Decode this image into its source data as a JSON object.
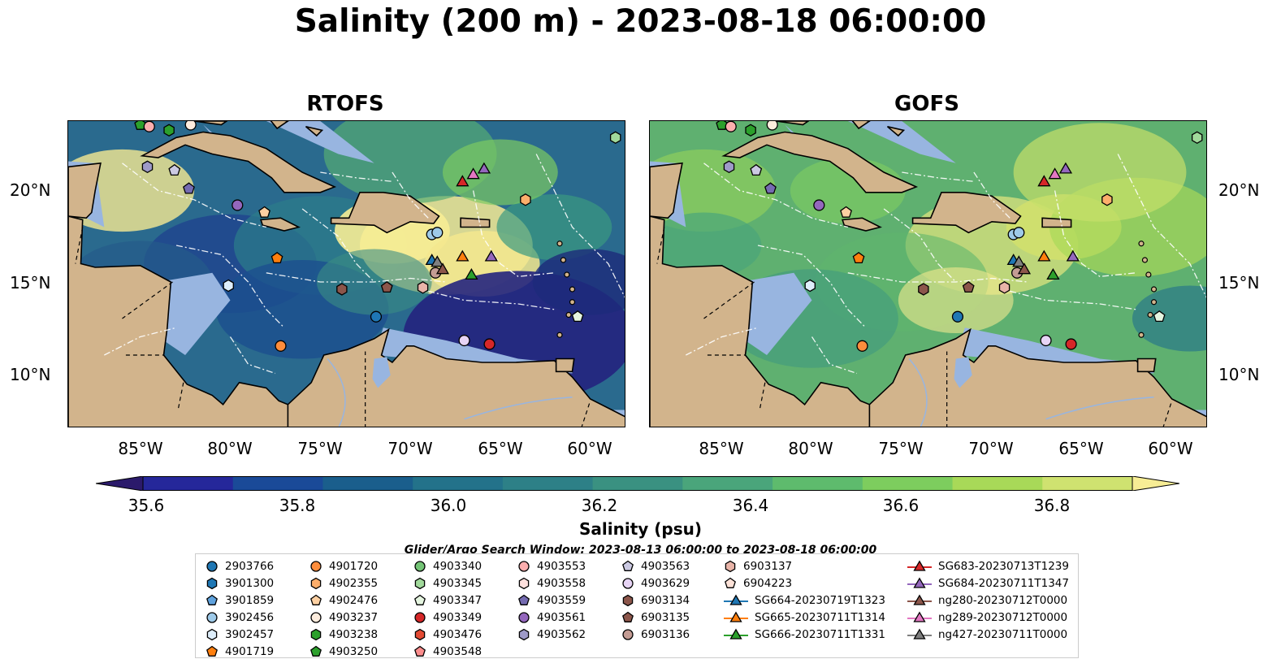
{
  "title": "Salinity (200 m) - 2023-08-18 06:00:00",
  "panels": [
    {
      "name": "RTOFS"
    },
    {
      "name": "GOFS"
    }
  ],
  "map": {
    "lon_range": [
      -89,
      -58
    ],
    "lat_range": [
      7,
      23.8
    ],
    "lat_ticks": [
      "20°N",
      "15°N",
      "10°N"
    ],
    "lon_ticks": [
      "85°W",
      "80°W",
      "75°W",
      "70°W",
      "65°W",
      "60°W"
    ],
    "colors": {
      "land": "#d2b48c",
      "shallow": "#98b5e0",
      "contour": "#ffffff"
    }
  },
  "colorbar": {
    "label": "Salinity (psu)",
    "ticks": [
      "35.6",
      "35.8",
      "36.0",
      "36.2",
      "36.4",
      "36.6",
      "36.8"
    ],
    "colors": [
      "#2b1a6b",
      "#25279a",
      "#1a4a98",
      "#1a5e8c",
      "#23728a",
      "#2d8087",
      "#3a9181",
      "#4aa57b",
      "#5ebb6d",
      "#7dcd5e",
      "#a8d958",
      "#cfe270",
      "#f7ed95"
    ]
  },
  "search_window": "Glider/Argo Search Window: 2023-08-13 06:00:00 to 2023-08-18 06:00:00",
  "legend": {
    "columns": [
      [
        {
          "label": "2903766",
          "marker": "circle",
          "color": "#1f77b4"
        },
        {
          "label": "3901300",
          "marker": "hexagon",
          "color": "#1f77b4"
        },
        {
          "label": "3901859",
          "marker": "pentagon",
          "color": "#5fa2dd"
        },
        {
          "label": "3902456",
          "marker": "circle",
          "color": "#9ecae9"
        },
        {
          "label": "3902457",
          "marker": "hexagon",
          "color": "#deeefb"
        },
        {
          "label": "4901719",
          "marker": "pentagon",
          "color": "#ff7f0e"
        }
      ],
      [
        {
          "label": "4901720",
          "marker": "circle",
          "color": "#fd8d3c"
        },
        {
          "label": "4902355",
          "marker": "hexagon",
          "color": "#fdae6b"
        },
        {
          "label": "4902476",
          "marker": "pentagon",
          "color": "#fdd0a2"
        },
        {
          "label": "4903237",
          "marker": "circle",
          "color": "#feedde"
        },
        {
          "label": "4903238",
          "marker": "hexagon",
          "color": "#2ca02c"
        },
        {
          "label": "4903250",
          "marker": "pentagon",
          "color": "#2ca02c"
        }
      ],
      [
        {
          "label": "4903340",
          "marker": "circle",
          "color": "#74c476"
        },
        {
          "label": "4903345",
          "marker": "hexagon",
          "color": "#a1d99b"
        },
        {
          "label": "4903347",
          "marker": "pentagon",
          "color": "#e5f5e0"
        },
        {
          "label": "4903349",
          "marker": "circle",
          "color": "#d62728"
        },
        {
          "label": "4903476",
          "marker": "hexagon",
          "color": "#e34a33"
        },
        {
          "label": "4903548",
          "marker": "pentagon",
          "color": "#fc8d8d"
        }
      ],
      [
        {
          "label": "4903553",
          "marker": "circle",
          "color": "#fcaeae"
        },
        {
          "label": "4903558",
          "marker": "hexagon",
          "color": "#fde0dd"
        },
        {
          "label": "4903559",
          "marker": "pentagon",
          "color": "#756bb1"
        },
        {
          "label": "4903561",
          "marker": "circle",
          "color": "#9467bd"
        },
        {
          "label": "4903562",
          "marker": "hexagon",
          "color": "#9e9ac8"
        }
      ],
      [
        {
          "label": "4903563",
          "marker": "pentagon",
          "color": "#cbc9e2"
        },
        {
          "label": "4903629",
          "marker": "circle",
          "color": "#e7d4f5"
        },
        {
          "label": "6903134",
          "marker": "hexagon",
          "color": "#8c564b"
        },
        {
          "label": "6903135",
          "marker": "pentagon",
          "color": "#8c564b"
        },
        {
          "label": "6903136",
          "marker": "circle",
          "color": "#c49c94"
        }
      ],
      [
        {
          "label": "6903137",
          "marker": "hexagon",
          "color": "#e8b4a8"
        },
        {
          "label": "6904223",
          "marker": "pentagon",
          "color": "#fde2d8"
        },
        {
          "label": "SG664-20230719T1323",
          "marker": "triangle-line",
          "color": "#1f77b4"
        },
        {
          "label": "SG665-20230711T1314",
          "marker": "triangle-line",
          "color": "#ff7f0e"
        },
        {
          "label": "SG666-20230711T1331",
          "marker": "triangle-line",
          "color": "#2ca02c"
        }
      ],
      [
        {
          "label": "SG683-20230713T1239",
          "marker": "triangle-line",
          "color": "#d62728"
        },
        {
          "label": "SG684-20230711T1347",
          "marker": "triangle-line",
          "color": "#9467bd"
        },
        {
          "label": "ng280-20230712T0000",
          "marker": "triangle-line",
          "color": "#8c564b"
        },
        {
          "label": "ng289-20230712T0000",
          "marker": "triangle-line",
          "color": "#e377c2"
        },
        {
          "label": "ng427-20230711T0000",
          "marker": "triangle-line",
          "color": "#7f7f7f"
        }
      ]
    ]
  },
  "observations": [
    {
      "id": "4903250",
      "lon": -85,
      "lat": 23.6
    },
    {
      "id": "4903553",
      "lon": -84.5,
      "lat": 23.5
    },
    {
      "id": "4903238",
      "lon": -83.4,
      "lat": 23.3
    },
    {
      "id": "4903237",
      "lon": -82.2,
      "lat": 23.6
    },
    {
      "id": "4903562",
      "lon": -84.6,
      "lat": 21.3
    },
    {
      "id": "4903563",
      "lon": -83.1,
      "lat": 21.1
    },
    {
      "id": "4903559",
      "lon": -82.3,
      "lat": 20.1
    },
    {
      "id": "4903561",
      "lon": -79.6,
      "lat": 19.2
    },
    {
      "id": "4902476",
      "lon": -78.1,
      "lat": 18.8
    },
    {
      "id": "4901719",
      "lon": -77.4,
      "lat": 16.3
    },
    {
      "id": "3902457",
      "lon": -80.1,
      "lat": 14.8
    },
    {
      "id": "4901720",
      "lon": -77.2,
      "lat": 11.5
    },
    {
      "id": "3902456",
      "lon": -68.8,
      "lat": 17.6
    },
    {
      "id": "3902456",
      "lon": -68.5,
      "lat": 17.7
    },
    {
      "id": "4902355",
      "lon": -63.6,
      "lat": 19.5
    },
    {
      "id": "6903134",
      "lon": -73.8,
      "lat": 14.6
    },
    {
      "id": "6903135",
      "lon": -71.3,
      "lat": 14.7
    },
    {
      "id": "6903137",
      "lon": -69.3,
      "lat": 14.7
    },
    {
      "id": "6903136",
      "lon": -68.6,
      "lat": 15.5
    },
    {
      "id": "2903766",
      "lon": -71.9,
      "lat": 13.1
    },
    {
      "id": "4903629",
      "lon": -67.0,
      "lat": 11.8
    },
    {
      "id": "4903349",
      "lon": -65.6,
      "lat": 11.6
    },
    {
      "id": "4903347",
      "lon": -60.7,
      "lat": 13.1
    },
    {
      "id": "4903345",
      "lon": -58.6,
      "lat": 22.9
    },
    {
      "id": "SG664-20230719T1323",
      "lon": -68.8,
      "lat": 16.2
    },
    {
      "id": "ng427-20230711T0000",
      "lon": -68.5,
      "lat": 16.1
    },
    {
      "id": "ng280-20230712T0000",
      "lon": -68.2,
      "lat": 15.7
    },
    {
      "id": "SG665-20230711T1314",
      "lon": -67.1,
      "lat": 16.4
    },
    {
      "id": "SG666-20230711T1331",
      "lon": -66.6,
      "lat": 15.4
    },
    {
      "id": "SG684-20230711T1347",
      "lon": -65.5,
      "lat": 16.4
    },
    {
      "id": "SG683-20230713T1239",
      "lon": -67.1,
      "lat": 20.5
    },
    {
      "id": "ng289-20230712T0000",
      "lon": -66.5,
      "lat": 20.9
    },
    {
      "id": "SG684-20230711T1347",
      "lon": -65.9,
      "lat": 21.2
    }
  ]
}
